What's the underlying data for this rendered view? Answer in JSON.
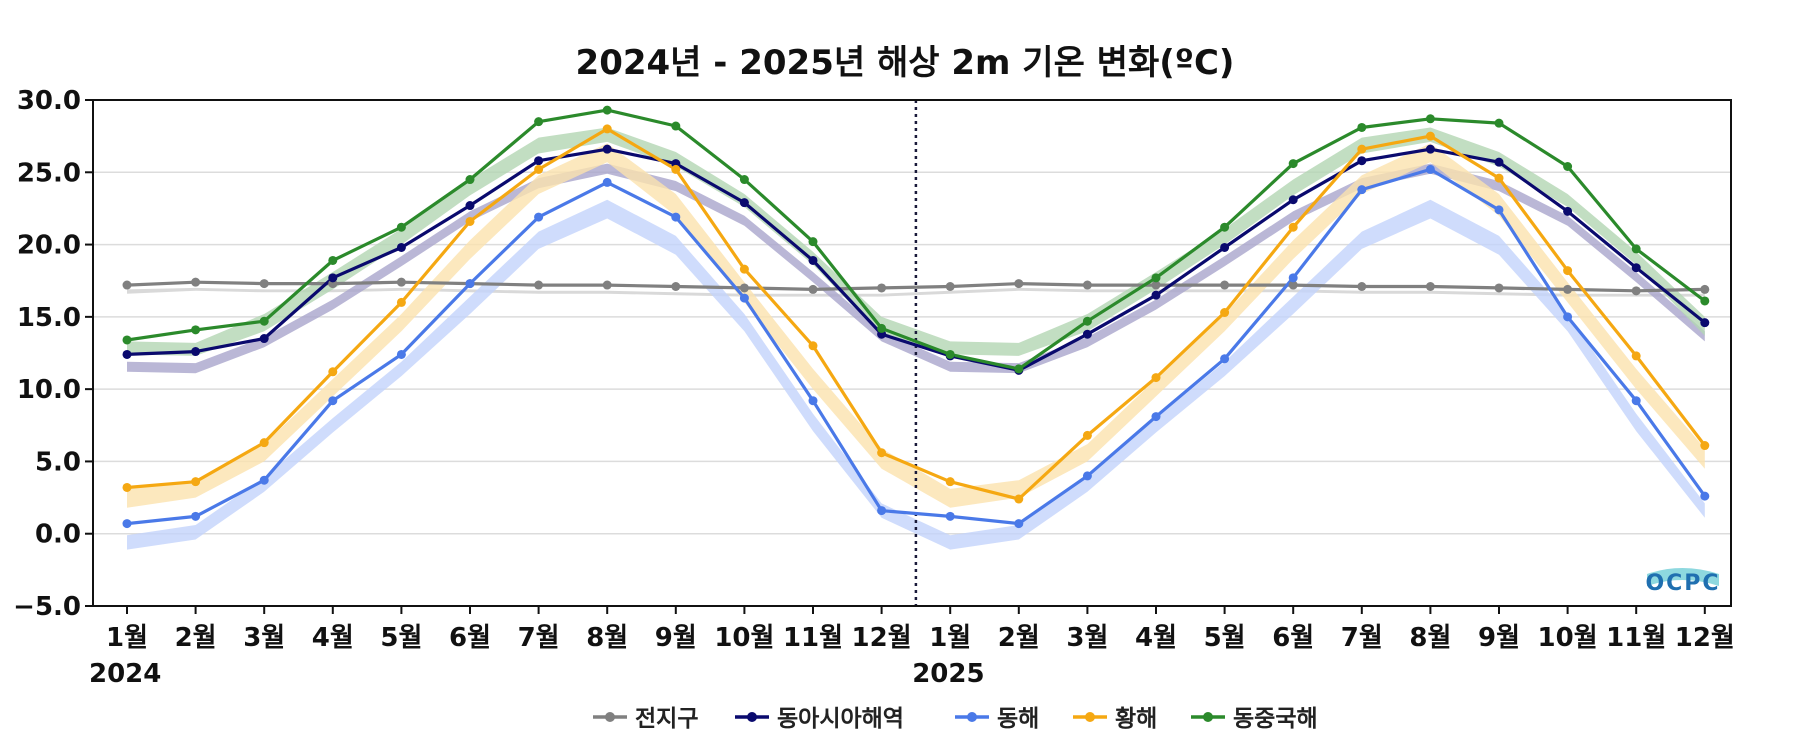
{
  "chart_data": {
    "type": "line",
    "title": "2024년 - 2025년 해상 2m 기온 변화(ºC)",
    "xlabel": "",
    "ylabel": "",
    "ylim": [
      -5,
      30
    ],
    "yticks": [
      "30.0",
      "25.0",
      "20.0",
      "15.0",
      "10.0",
      "5.0",
      "0.0",
      "−5.0"
    ],
    "ytick_values": [
      30,
      25,
      20,
      15,
      10,
      5,
      0,
      -5
    ],
    "categories": [
      "1월",
      "2월",
      "3월",
      "4월",
      "5월",
      "6월",
      "7월",
      "8월",
      "9월",
      "10월",
      "11월",
      "12월",
      "1월",
      "2월",
      "3월",
      "4월",
      "5월",
      "6월",
      "7월",
      "8월",
      "9월",
      "10월",
      "11월",
      "12월"
    ],
    "year_labels": [
      {
        "text": "2024",
        "at_index": 0
      },
      {
        "text": "2025",
        "at_index": 12
      }
    ],
    "divider_between": [
      11,
      12
    ],
    "grid": true,
    "legend_position": "bottom",
    "logo": "OCPC",
    "series": [
      {
        "name": "전지구",
        "color": "#808080",
        "values": [
          17.2,
          17.4,
          17.3,
          17.3,
          17.4,
          17.3,
          17.2,
          17.2,
          17.1,
          17.0,
          16.9,
          17.0,
          17.1,
          17.3,
          17.2,
          17.2,
          17.2,
          17.2,
          17.1,
          17.1,
          17.0,
          16.9,
          16.8,
          16.9
        ],
        "normal_band": {
          "color": "#d0d0d0",
          "lower": [
            16.6,
            16.8,
            16.7,
            16.7,
            16.8,
            16.7,
            16.6,
            16.6,
            16.5,
            16.4,
            16.4,
            16.4,
            16.6,
            16.8,
            16.7,
            16.7,
            16.7,
            16.7,
            16.6,
            16.6,
            16.5,
            16.4,
            16.4,
            16.4
          ],
          "upper": [
            16.9,
            17.0,
            16.9,
            16.9,
            17.0,
            16.9,
            16.8,
            16.8,
            16.7,
            16.6,
            16.6,
            16.6,
            16.8,
            17.0,
            16.9,
            16.9,
            16.9,
            16.9,
            16.8,
            16.8,
            16.7,
            16.6,
            16.6,
            16.6
          ]
        }
      },
      {
        "name": "동아시아해역",
        "color": "#0a0a6e",
        "values": [
          12.4,
          12.6,
          13.5,
          17.7,
          19.8,
          22.7,
          25.8,
          26.6,
          25.6,
          22.9,
          18.9,
          13.8,
          12.3,
          11.3,
          13.8,
          16.5,
          19.8,
          23.1,
          25.8,
          26.6,
          25.7,
          22.3,
          18.4,
          14.6
        ],
        "normal_band": {
          "color": "#a9a5cc",
          "lower": [
            11.2,
            11.1,
            12.9,
            15.5,
            18.5,
            21.6,
            23.9,
            24.9,
            23.7,
            21.3,
            17.4,
            13.3,
            11.2,
            11.1,
            12.9,
            15.5,
            18.5,
            21.6,
            23.9,
            24.9,
            23.7,
            21.3,
            17.4,
            13.3
          ],
          "upper": [
            11.9,
            11.8,
            13.6,
            16.2,
            19.2,
            22.3,
            24.6,
            25.6,
            24.4,
            22.0,
            18.1,
            14.0,
            11.9,
            11.8,
            13.6,
            16.2,
            19.2,
            22.3,
            24.6,
            25.6,
            24.4,
            22.0,
            18.1,
            14.0
          ]
        }
      },
      {
        "name": "동해",
        "color": "#4a79e8",
        "values": [
          0.7,
          1.2,
          3.7,
          9.2,
          12.4,
          17.3,
          21.9,
          24.3,
          21.9,
          16.3,
          9.2,
          1.6,
          1.2,
          0.7,
          4.0,
          8.1,
          12.1,
          17.7,
          23.8,
          25.2,
          22.4,
          15.0,
          9.2,
          2.6
        ],
        "normal_band": {
          "color": "#c3d3fb",
          "lower": [
            -1.1,
            -0.4,
            2.9,
            7.0,
            10.9,
            15.2,
            19.7,
            21.8,
            19.3,
            14.0,
            7.1,
            1.1,
            -1.1,
            -0.4,
            2.9,
            7.0,
            10.9,
            15.2,
            19.7,
            21.8,
            19.3,
            14.0,
            7.1,
            1.1
          ],
          "upper": [
            -0.1,
            0.6,
            3.9,
            8.0,
            11.9,
            16.4,
            20.9,
            23.1,
            20.6,
            15.2,
            8.3,
            2.1,
            -0.1,
            0.6,
            3.9,
            8.0,
            11.9,
            16.4,
            20.9,
            23.1,
            20.6,
            15.2,
            8.3,
            2.1
          ]
        }
      },
      {
        "name": "황해",
        "color": "#f5a812",
        "values": [
          3.2,
          3.6,
          6.3,
          11.2,
          16.0,
          21.6,
          25.2,
          28.0,
          25.2,
          18.3,
          13.0,
          5.6,
          3.6,
          2.4,
          6.8,
          10.8,
          15.3,
          21.2,
          26.6,
          27.5,
          24.6,
          18.2,
          12.3,
          6.1
        ],
        "normal_band": {
          "color": "#fbe2ae",
          "lower": [
            1.8,
            2.5,
            5.0,
            9.5,
            14.0,
            19.0,
            23.5,
            25.7,
            22.0,
            16.0,
            10.0,
            4.5,
            1.8,
            2.5,
            5.0,
            9.5,
            14.0,
            19.0,
            23.5,
            25.7,
            22.0,
            16.0,
            10.0,
            4.5
          ],
          "upper": [
            3.1,
            3.7,
            6.2,
            10.7,
            15.2,
            20.3,
            24.8,
            27.0,
            23.5,
            17.4,
            11.4,
            5.9,
            3.1,
            3.7,
            6.2,
            10.7,
            15.2,
            20.3,
            24.8,
            27.0,
            23.5,
            17.4,
            11.4,
            5.9
          ]
        }
      },
      {
        "name": "동중국해",
        "color": "#2b8a2b",
        "values": [
          13.4,
          14.1,
          14.7,
          18.9,
          21.2,
          24.5,
          28.5,
          29.3,
          28.2,
          24.5,
          20.2,
          14.2,
          12.4,
          11.4,
          14.7,
          17.7,
          21.2,
          25.6,
          28.1,
          28.7,
          28.4,
          25.4,
          19.7,
          16.1
        ],
        "normal_band": {
          "color": "#b3d6b3",
          "lower": [
            12.4,
            12.3,
            14.0,
            16.9,
            20.0,
            23.4,
            26.3,
            27.1,
            25.4,
            22.6,
            18.6,
            13.7,
            12.4,
            12.3,
            14.0,
            16.9,
            20.0,
            23.4,
            26.3,
            27.1,
            25.4,
            22.6,
            18.6,
            13.7
          ],
          "upper": [
            13.3,
            13.2,
            15.2,
            18.1,
            21.1,
            24.5,
            27.4,
            28.1,
            26.4,
            23.5,
            19.5,
            15.0,
            13.3,
            13.2,
            15.2,
            18.1,
            21.1,
            24.5,
            27.4,
            28.1,
            26.4,
            23.5,
            19.5,
            15.0
          ]
        }
      }
    ]
  }
}
